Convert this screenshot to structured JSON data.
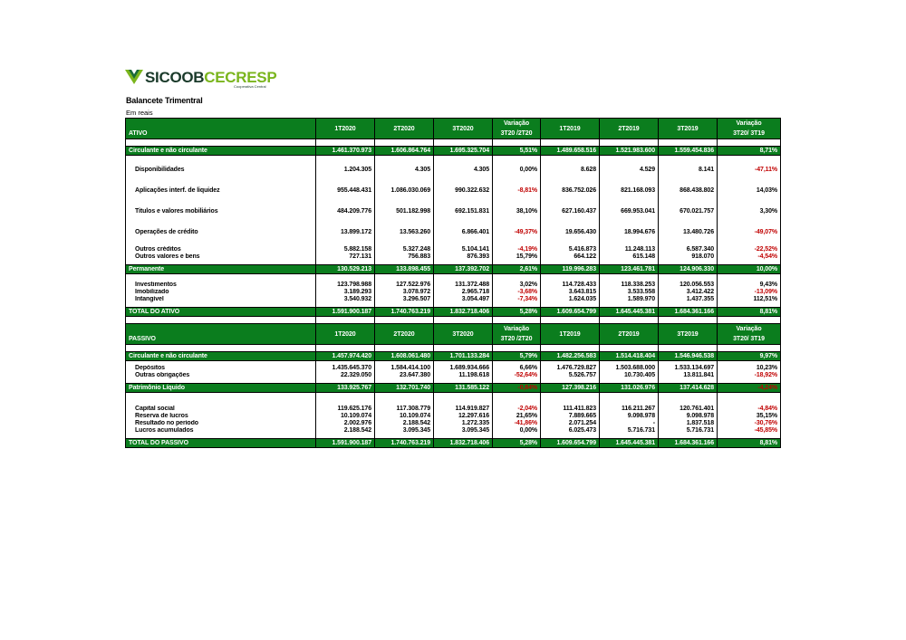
{
  "header": {
    "logo_text_1": "SICOOB",
    "logo_text_2": "CECRESP",
    "logo_sub": "Cooperativa Central",
    "title": "Balancete Trimentral",
    "subtitle": "Em reais"
  },
  "columns": [
    "1T2020",
    "2T2020",
    "3T2020",
    "Variação 3T20 /2T20",
    "1T2019",
    "2T2019",
    "3T2019",
    "Variação 3T20/ 3T19"
  ],
  "columns_split": {
    "var1_a": "Variação",
    "var1_b": "3T20 /2T20",
    "var2_a": "Variação",
    "var2_b": "3T20/ 3T19"
  },
  "ativo": {
    "label": "ATIVO",
    "circulante": [
      "Circulante e não circulante",
      "1.461.370.973",
      "1.606.864.764",
      "1.695.325.704",
      "5,51%",
      "1.489.658.516",
      "1.521.983.600",
      "1.559.454.836",
      "8,71%"
    ],
    "items1": [
      [
        "Disponibilidades",
        "1.204.305",
        "4.305",
        "4.305",
        "0,00%",
        "8.628",
        "4.529",
        "8.141",
        "-47,11%"
      ],
      [
        "Aplicações interf. de liquidez",
        "955.448.431",
        "1.086.030.069",
        "990.322.632",
        "-8,81%",
        "836.752.026",
        "821.168.093",
        "868.438.802",
        "14,03%"
      ],
      [
        "Titulos e valores mobiliários",
        "484.209.776",
        "501.182.998",
        "692.151.831",
        "38,10%",
        "627.160.437",
        "669.953.041",
        "670.021.757",
        "3,30%"
      ],
      [
        "Operações de crédito",
        "13.899.172",
        "13.563.260",
        "6.866.401",
        "-49,37%",
        "19.656.430",
        "18.994.676",
        "13.480.726",
        "-49,07%"
      ]
    ],
    "items2": [
      [
        "Outros créditos",
        "5.882.158",
        "5.327.248",
        "5.104.141",
        "-4,19%",
        "5.416.873",
        "11.248.113",
        "6.587.340",
        "-22,52%"
      ],
      [
        "Outros valores e bens",
        "727.131",
        "756.883",
        "876.393",
        "15,79%",
        "664.122",
        "615.148",
        "918.070",
        "-4,54%"
      ]
    ],
    "permanente": [
      "Permanente",
      "130.529.213",
      "133.898.455",
      "137.392.702",
      "2,61%",
      "119.996.283",
      "123.461.781",
      "124.906.330",
      "10,00%"
    ],
    "items3": [
      [
        "Investimentos",
        "123.798.988",
        "127.522.976",
        "131.372.488",
        "3,02%",
        "114.728.433",
        "118.338.253",
        "120.056.553",
        "9,43%"
      ],
      [
        "Imobilizado",
        "3.189.293",
        "3.078.972",
        "2.965.718",
        "-3,68%",
        "3.643.815",
        "3.533.558",
        "3.412.422",
        "-13,09%"
      ],
      [
        "Intangível",
        "3.540.932",
        "3.296.507",
        "3.054.497",
        "-7,34%",
        "1.624.035",
        "1.589.970",
        "1.437.355",
        "112,51%"
      ]
    ],
    "total": [
      "TOTAL DO ATIVO",
      "1.591.900.187",
      "1.740.763.219",
      "1.832.718.406",
      "5,28%",
      "1.609.654.799",
      "1.645.445.381",
      "1.684.361.166",
      "8,81%"
    ]
  },
  "passivo": {
    "label": "PASSIVO",
    "circulante": [
      "Circulante e não circulante",
      "1.457.974.420",
      "1.608.061.480",
      "1.701.133.284",
      "5,79%",
      "1.482.256.583",
      "1.514.418.404",
      "1.546.946.538",
      "9,97%"
    ],
    "items1": [
      [
        "Depósitos",
        "1.435.645.370",
        "1.584.414.100",
        "1.689.934.666",
        "6,66%",
        "1.476.729.827",
        "1.503.688.000",
        "1.533.134.697",
        "10,23%"
      ],
      [
        "Outras obrigações",
        "22.329.050",
        "23.647.380",
        "11.198.618",
        "-52,64%",
        "5.526.757",
        "10.730.405",
        "13.811.841",
        "-18,92%"
      ]
    ],
    "patrimonio": [
      "Patrimônio Líquido",
      "133.925.767",
      "132.701.740",
      "131.585.122",
      "-0,84%",
      "127.398.216",
      "131.026.976",
      "137.414.628",
      "-4,24%"
    ],
    "items2": [
      [
        "Capital social",
        "119.625.176",
        "117.308.779",
        "114.919.827",
        "-2,04%",
        "111.411.823",
        "116.211.267",
        "120.761.401",
        "-4,84%"
      ],
      [
        "Reserva de lucros",
        "10.109.074",
        "10.109.074",
        "12.297.616",
        "21,65%",
        "7.889.665",
        "9.098.978",
        "9.098.978",
        "35,15%"
      ],
      [
        "Resultado no período",
        "2.002.976",
        "2.188.542",
        "1.272.335",
        "-41,86%",
        "2.071.254",
        "-",
        "1.837.518",
        "-30,76%"
      ],
      [
        "Lucros acumulados",
        "2.188.542",
        "3.095.345",
        "3.095.345",
        "0,00%",
        "6.025.473",
        "5.716.731",
        "5.716.731",
        "-45,85%"
      ]
    ],
    "total": [
      "TOTAL DO PASSIVO",
      "1.591.900.187",
      "1.740.763.219",
      "1.832.718.406",
      "5,28%",
      "1.609.654.799",
      "1.645.445.381",
      "1.684.361.166",
      "8,81%"
    ]
  }
}
